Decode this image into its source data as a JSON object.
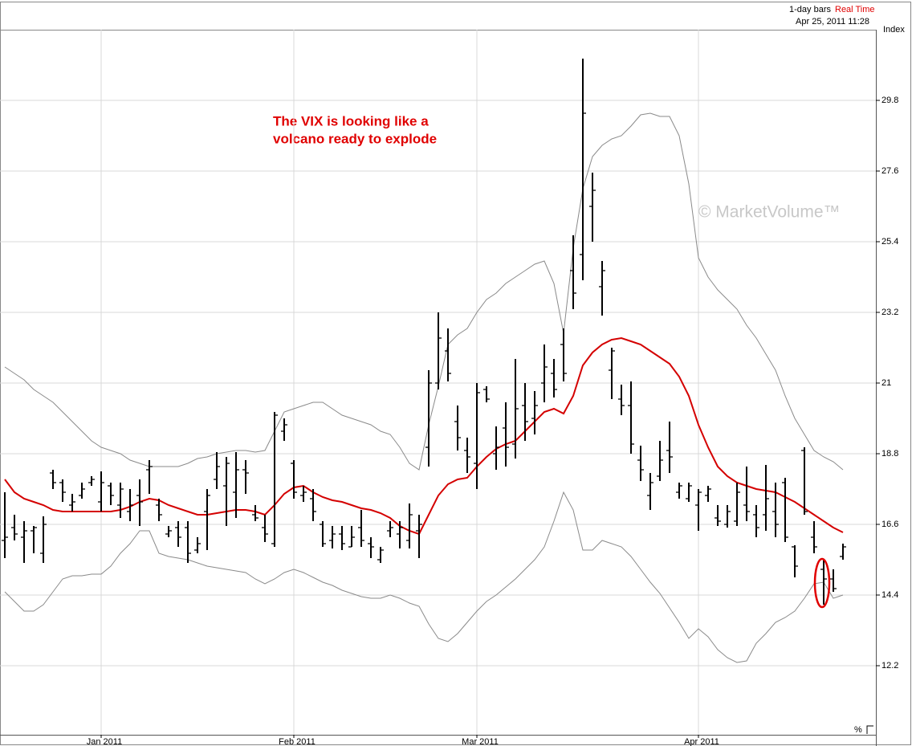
{
  "chart_data": {
    "type": "ohlc",
    "bar_interval": "1-day bars",
    "feed": "Real Time",
    "timestamp": "Apr 25, 2011 11:28",
    "ylabel": "Index",
    "annotation": [
      "The VIX is looking like a",
      "volcano ready to explode"
    ],
    "watermark": "© MarketVolume™",
    "corner_label": "%",
    "color": "#000000",
    "grid": true,
    "ylim": [
      10.05,
      32.0
    ],
    "yticks": [
      12.2,
      14.4,
      16.6,
      18.8,
      21.0,
      23.2,
      25.4,
      27.6,
      29.8
    ],
    "categories": [
      null,
      null,
      null,
      null,
      null,
      null,
      null,
      null,
      null,
      null,
      "Jan 2011",
      null,
      null,
      null,
      null,
      null,
      null,
      null,
      null,
      null,
      null,
      null,
      null,
      null,
      null,
      null,
      null,
      null,
      null,
      null,
      "Feb 2011",
      null,
      null,
      null,
      null,
      null,
      null,
      null,
      null,
      null,
      null,
      null,
      null,
      null,
      null,
      null,
      null,
      null,
      null,
      "Mar 2011",
      null,
      null,
      null,
      null,
      null,
      null,
      null,
      null,
      null,
      null,
      null,
      null,
      null,
      null,
      null,
      null,
      null,
      null,
      null,
      null,
      null,
      null,
      "Apr 2011",
      null,
      null,
      null,
      null,
      null,
      null,
      null,
      null,
      null,
      null,
      null,
      null,
      null,
      null,
      null
    ],
    "open": [
      16.1,
      16.5,
      16.2,
      16.4,
      15.7,
      18.2,
      17.9,
      17.2,
      17.5,
      17.9,
      17.3,
      17.8,
      17.2,
      17.0,
      17.5,
      18.3,
      17.2,
      16.3,
      16.5,
      16.5,
      15.8,
      17.0,
      18.0,
      17.8,
      17.6,
      18.3,
      16.9,
      16.5,
      16.0,
      19.5,
      18.5,
      17.5,
      17.4,
      16.6,
      16.1,
      16.3,
      15.9,
      16.5,
      16.0,
      15.5,
      16.4,
      16.3,
      16.1,
      16.4,
      19.0,
      21.0,
      22.0,
      19.8,
      18.9,
      18.5,
      20.8,
      18.8,
      19.6,
      19.1,
      20.3,
      19.9,
      21.0,
      21.3,
      22.2,
      24.5,
      25.0,
      26.5,
      24.0,
      21.4,
      20.5,
      20.3,
      18.6,
      17.5,
      18.1,
      18.9,
      17.6,
      17.4,
      17.2,
      17.5,
      16.8,
      16.6,
      16.7,
      17.2,
      16.9,
      16.9,
      17.0,
      17.9,
      15.9,
      18.9,
      16.2,
      15.2,
      14.9,
      15.6
    ],
    "high": [
      17.6,
      16.9,
      16.7,
      16.55,
      16.85,
      18.3,
      18.0,
      17.55,
      17.9,
      18.1,
      18.25,
      17.9,
      17.9,
      17.7,
      18.0,
      18.6,
      17.4,
      16.55,
      16.7,
      16.7,
      16.2,
      17.7,
      18.85,
      18.7,
      18.85,
      18.6,
      17.2,
      16.9,
      20.1,
      19.9,
      18.6,
      17.8,
      17.7,
      16.7,
      16.55,
      16.55,
      16.55,
      17.05,
      16.2,
      15.9,
      16.7,
      16.7,
      17.25,
      16.9,
      21.4,
      23.2,
      22.7,
      20.3,
      19.3,
      21.0,
      20.9,
      19.65,
      20.4,
      21.75,
      21.0,
      20.75,
      22.2,
      21.75,
      22.7,
      25.6,
      31.1,
      27.55,
      24.8,
      22.1,
      20.95,
      21.05,
      19.05,
      18.2,
      19.2,
      19.8,
      17.9,
      17.9,
      17.7,
      17.8,
      17.2,
      17.2,
      17.9,
      18.4,
      17.2,
      18.45,
      17.9,
      18.05,
      15.95,
      19.0,
      16.7,
      15.5,
      15.2,
      16.0
    ],
    "low": [
      15.55,
      16.1,
      15.4,
      15.7,
      15.4,
      17.7,
      17.3,
      17.0,
      17.4,
      17.8,
      17.0,
      17.2,
      16.8,
      16.7,
      16.55,
      17.55,
      16.7,
      16.2,
      15.9,
      15.4,
      15.7,
      15.8,
      17.7,
      16.55,
      16.8,
      17.55,
      16.7,
      16.05,
      15.9,
      19.2,
      17.4,
      17.3,
      16.7,
      15.9,
      15.85,
      15.8,
      15.9,
      15.9,
      15.55,
      15.4,
      16.2,
      15.85,
      15.85,
      15.55,
      18.4,
      20.8,
      21.05,
      18.9,
      18.2,
      17.7,
      20.4,
      18.3,
      18.4,
      18.65,
      19.2,
      19.4,
      20.4,
      20.55,
      21.05,
      23.3,
      24.2,
      25.4,
      23.1,
      20.5,
      20.0,
      18.8,
      17.95,
      17.05,
      17.95,
      18.2,
      17.4,
      17.3,
      16.4,
      17.3,
      16.55,
      16.5,
      16.55,
      16.7,
      16.2,
      16.4,
      16.2,
      16.05,
      14.95,
      16.9,
      15.7,
      14.1,
      14.5,
      15.5
    ],
    "close": [
      16.2,
      16.3,
      16.4,
      16.5,
      16.6,
      17.9,
      17.6,
      17.3,
      17.7,
      18.0,
      17.9,
      17.5,
      17.7,
      17.2,
      17.3,
      18.4,
      16.9,
      16.4,
      16.2,
      15.7,
      16.0,
      17.5,
      18.4,
      18.5,
      18.3,
      18.2,
      16.8,
      16.3,
      20.0,
      19.7,
      17.6,
      17.6,
      17.0,
      16.0,
      16.3,
      16.0,
      16.2,
      16.1,
      15.9,
      15.8,
      16.5,
      16.5,
      16.9,
      16.6,
      21.0,
      22.4,
      21.3,
      19.3,
      18.7,
      20.7,
      20.5,
      19.0,
      19.0,
      20.2,
      19.8,
      20.3,
      21.5,
      20.8,
      21.3,
      23.8,
      29.4,
      27.0,
      24.5,
      22.0,
      20.3,
      19.1,
      18.3,
      17.9,
      18.6,
      18.7,
      17.8,
      17.8,
      17.6,
      17.7,
      16.7,
      17.0,
      17.6,
      17.0,
      16.5,
      17.4,
      16.6,
      16.2,
      15.3,
      17.0,
      15.9,
      14.9,
      14.6,
      15.9
    ],
    "overlays": [
      {
        "color": "#8a8a8a",
        "values": [
          21.5,
          21.3,
          21.1,
          20.8,
          20.6,
          20.4,
          20.1,
          19.8,
          19.5,
          19.2,
          19.0,
          18.9,
          18.8,
          18.6,
          18.5,
          18.4,
          18.4,
          18.4,
          18.4,
          18.5,
          18.65,
          18.7,
          18.8,
          18.85,
          18.9,
          18.9,
          18.85,
          18.9,
          19.5,
          20.1,
          20.2,
          20.3,
          20.4,
          20.4,
          20.2,
          20.0,
          19.9,
          19.8,
          19.7,
          19.5,
          19.4,
          19.0,
          18.5,
          18.3,
          19.7,
          20.9,
          22.2,
          22.5,
          22.7,
          23.2,
          23.6,
          23.8,
          24.1,
          24.3,
          24.5,
          24.7,
          24.8,
          24.1,
          22.55,
          25.2,
          27.05,
          28.05,
          28.4,
          28.6,
          28.7,
          29.0,
          29.35,
          29.4,
          29.3,
          29.3,
          28.7,
          27.2,
          24.9,
          24.3,
          23.9,
          23.6,
          23.3,
          22.8,
          22.4,
          21.9,
          21.4,
          20.6,
          19.9,
          19.4,
          18.9,
          18.7,
          18.55,
          18.3
        ]
      },
      {
        "color": "#d40000",
        "values": [
          18.0,
          17.6,
          17.4,
          17.3,
          17.2,
          17.05,
          17.0,
          17.0,
          17.0,
          17.0,
          17.0,
          17.0,
          17.05,
          17.15,
          17.3,
          17.4,
          17.35,
          17.2,
          17.1,
          17.0,
          16.9,
          16.9,
          16.95,
          17.0,
          17.05,
          17.05,
          17.0,
          16.9,
          17.2,
          17.55,
          17.75,
          17.8,
          17.6,
          17.45,
          17.35,
          17.3,
          17.2,
          17.1,
          17.05,
          16.95,
          16.8,
          16.55,
          16.4,
          16.3,
          16.9,
          17.5,
          17.85,
          18.0,
          18.05,
          18.4,
          18.7,
          18.95,
          19.1,
          19.2,
          19.5,
          19.8,
          20.1,
          20.2,
          20.05,
          20.6,
          21.55,
          21.95,
          22.2,
          22.35,
          22.4,
          22.3,
          22.2,
          22.0,
          21.8,
          21.6,
          21.2,
          20.6,
          19.7,
          19.0,
          18.4,
          18.1,
          17.9,
          17.8,
          17.7,
          17.65,
          17.6,
          17.45,
          17.3,
          17.1,
          16.9,
          16.7,
          16.5,
          16.35
        ]
      },
      {
        "color": "#8a8a8a",
        "values": [
          14.5,
          14.2,
          13.9,
          13.9,
          14.1,
          14.5,
          14.9,
          15.0,
          15.0,
          15.05,
          15.05,
          15.3,
          15.7,
          16.0,
          16.4,
          16.4,
          15.7,
          15.6,
          15.55,
          15.5,
          15.4,
          15.3,
          15.25,
          15.2,
          15.15,
          15.1,
          14.9,
          14.75,
          14.9,
          15.1,
          15.2,
          15.1,
          14.95,
          14.8,
          14.7,
          14.55,
          14.45,
          14.35,
          14.3,
          14.3,
          14.4,
          14.3,
          14.15,
          14.05,
          13.5,
          13.05,
          12.95,
          13.2,
          13.55,
          13.9,
          14.2,
          14.4,
          14.65,
          14.9,
          15.2,
          15.5,
          15.9,
          16.7,
          17.6,
          17.05,
          15.8,
          15.8,
          16.1,
          16.0,
          15.9,
          15.6,
          15.2,
          14.8,
          14.45,
          14.0,
          13.55,
          13.05,
          13.35,
          13.1,
          12.7,
          12.45,
          12.3,
          12.35,
          12.9,
          13.2,
          13.55,
          13.7,
          13.9,
          14.3,
          14.75,
          14.8,
          14.3,
          14.4
        ]
      }
    ]
  }
}
